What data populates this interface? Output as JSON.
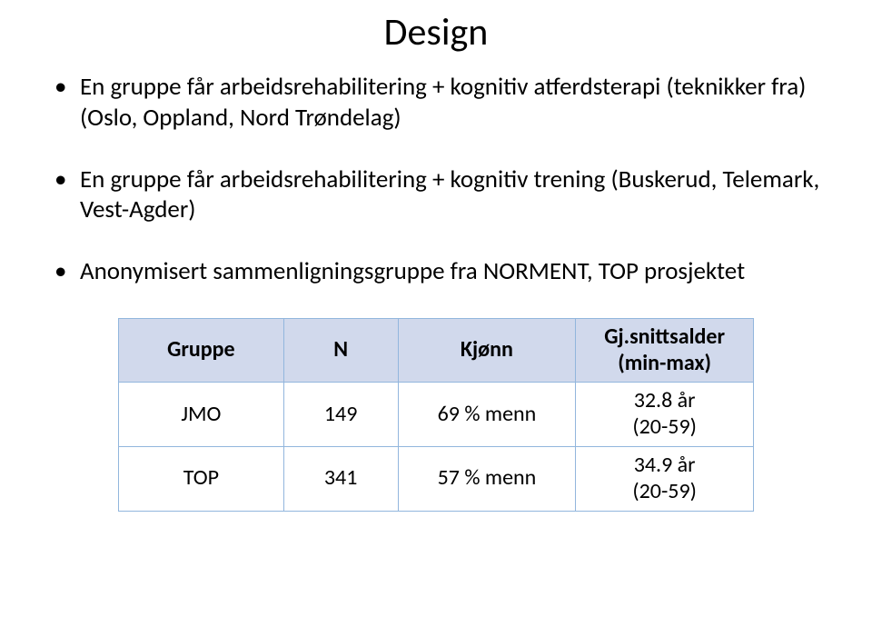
{
  "title": "Design",
  "bullets": [
    "En gruppe får arbeidsrehabilitering + kognitiv atferdsterapi (teknikker fra) (Oslo, Oppland, Nord Trøndelag)",
    "En gruppe får arbeidsrehabilitering + kognitiv trening  (Buskerud, Telemark, Vest-Agder)",
    "Anonymisert sammenligningsgruppe fra NORMENT, TOP prosjektet"
  ],
  "table": {
    "columns": [
      "Gruppe",
      "N",
      "Kjønn",
      "Gj.snittsalder\n(min-max)"
    ],
    "rows": [
      [
        "JMO",
        "149",
        "69 % menn",
        "32.8 år\n(20-59)"
      ],
      [
        "TOP",
        "341",
        "57 % menn",
        "34.9  år\n(20-59)"
      ]
    ],
    "header_bg": "#d1d9ec",
    "border_color": "#92b6dd",
    "cell_bg": "#ffffff",
    "header_fontsize": 24,
    "cell_fontsize": 24,
    "col_widths_pct": [
      26,
      18,
      28,
      28
    ]
  },
  "background_color": "#ffffff",
  "text_color": "#000000",
  "title_fontsize": 42,
  "bullet_fontsize": 27
}
